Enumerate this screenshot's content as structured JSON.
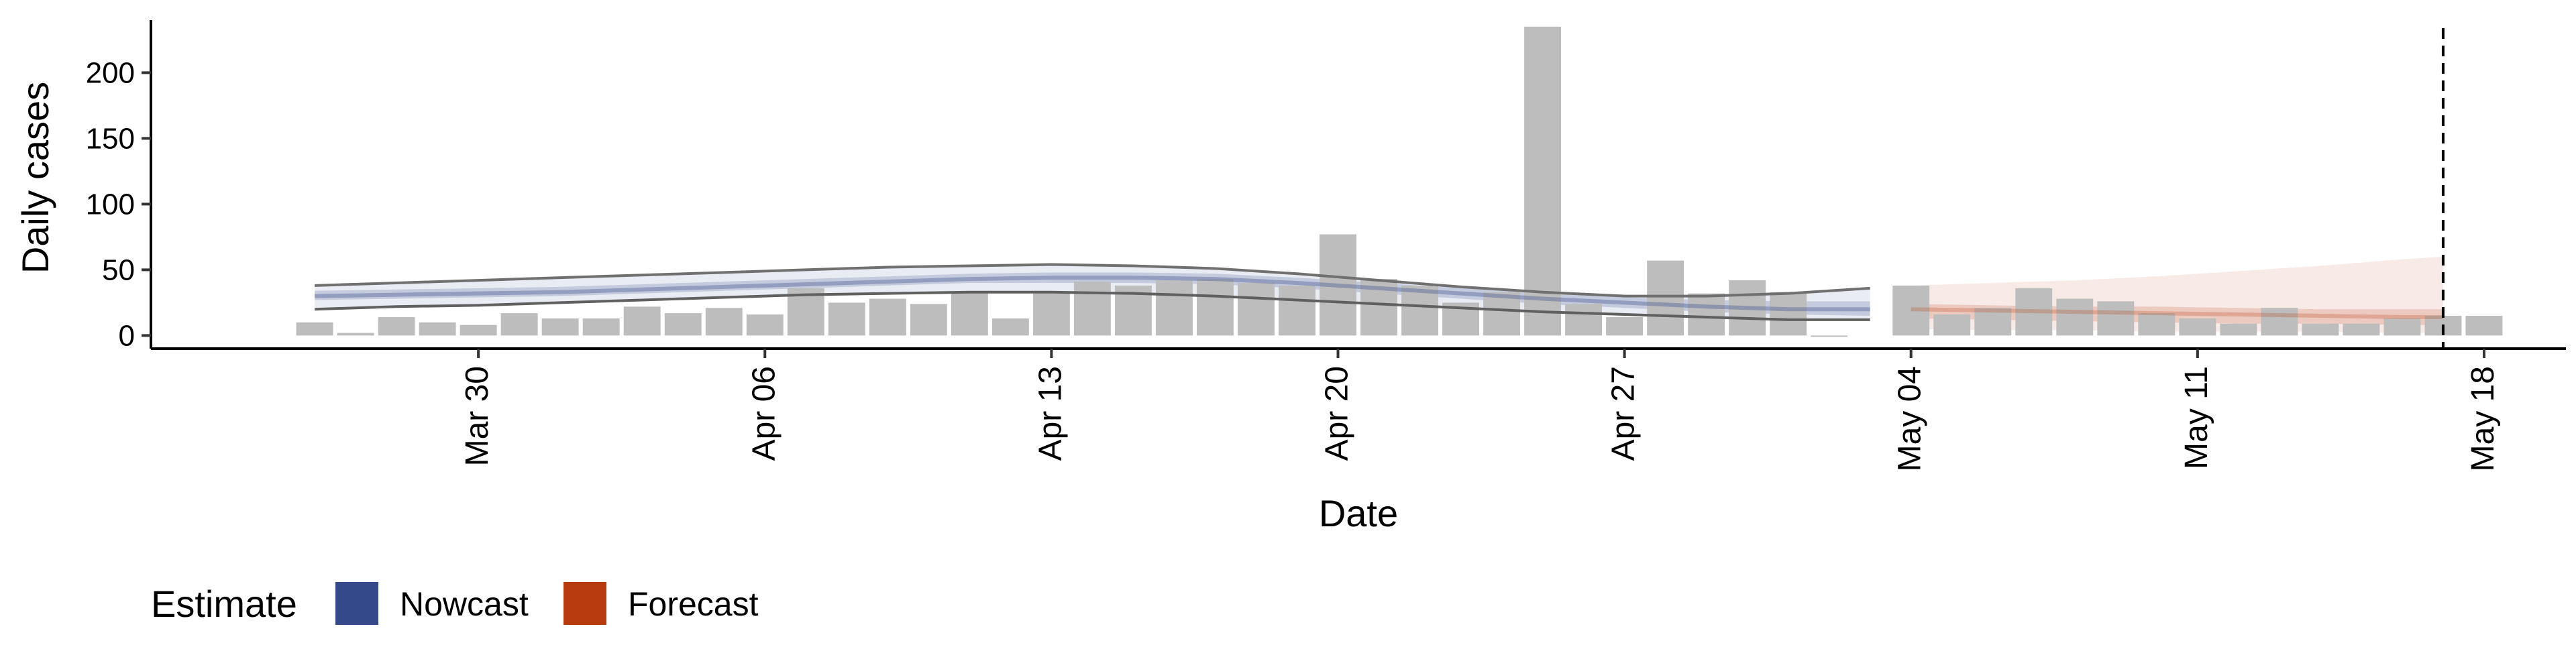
{
  "chart_data": {
    "type": "bar",
    "title": "",
    "xlabel": "Date",
    "ylabel": "Daily cases",
    "ylim": [
      -10,
      240
    ],
    "yticks": [
      0,
      50,
      100,
      150,
      200
    ],
    "x_range": [
      "2020-03-22",
      "2020-05-20"
    ],
    "xticks": [
      {
        "date": "2020-03-30",
        "label": "Mar 30"
      },
      {
        "date": "2020-04-06",
        "label": "Apr 06"
      },
      {
        "date": "2020-04-13",
        "label": "Apr 13"
      },
      {
        "date": "2020-04-20",
        "label": "Apr 20"
      },
      {
        "date": "2020-04-27",
        "label": "Apr 27"
      },
      {
        "date": "2020-05-04",
        "label": "May 04"
      },
      {
        "date": "2020-05-11",
        "label": "May 11"
      },
      {
        "date": "2020-05-18",
        "label": "May 18"
      }
    ],
    "grid": false,
    "legend": {
      "position": "bottom-left",
      "title": "Estimate",
      "entries": [
        {
          "label": "Nowcast",
          "color": "#34498a"
        },
        {
          "label": "Forecast",
          "color": "#b83a0f"
        }
      ]
    },
    "reference_line": {
      "date": "2020-05-17",
      "style": "dashed"
    },
    "observed_cases": {
      "color": "#bdbdbd",
      "dates": [
        "2020-03-26",
        "2020-03-27",
        "2020-03-28",
        "2020-03-29",
        "2020-03-30",
        "2020-03-31",
        "2020-04-01",
        "2020-04-02",
        "2020-04-03",
        "2020-04-04",
        "2020-04-05",
        "2020-04-06",
        "2020-04-07",
        "2020-04-08",
        "2020-04-09",
        "2020-04-10",
        "2020-04-11",
        "2020-04-12",
        "2020-04-13",
        "2020-04-14",
        "2020-04-15",
        "2020-04-16",
        "2020-04-17",
        "2020-04-18",
        "2020-04-19",
        "2020-04-20",
        "2020-04-21",
        "2020-04-22",
        "2020-04-23",
        "2020-04-24",
        "2020-04-25",
        "2020-04-26",
        "2020-04-27",
        "2020-04-28",
        "2020-04-29",
        "2020-04-30",
        "2020-05-01",
        "2020-05-02",
        "2020-05-04",
        "2020-05-05",
        "2020-05-06",
        "2020-05-07",
        "2020-05-08",
        "2020-05-09",
        "2020-05-10",
        "2020-05-11",
        "2020-05-12",
        "2020-05-13",
        "2020-05-14",
        "2020-05-15",
        "2020-05-16",
        "2020-05-17",
        "2020-05-18"
      ],
      "values": [
        10,
        2,
        14,
        10,
        8,
        17,
        13,
        13,
        22,
        17,
        21,
        16,
        36,
        25,
        28,
        24,
        33,
        13,
        32,
        41,
        38,
        42,
        43,
        40,
        38,
        77,
        43,
        38,
        25,
        33,
        235,
        24,
        14,
        57,
        32,
        42,
        33,
        0,
        38,
        16,
        21,
        36,
        28,
        26,
        17,
        13,
        9,
        21,
        9,
        9,
        13,
        15,
        15
      ]
    },
    "nowcast": {
      "color": "#34498a",
      "dates": [
        "2020-03-26",
        "2020-03-28",
        "2020-03-30",
        "2020-04-01",
        "2020-04-03",
        "2020-04-05",
        "2020-04-07",
        "2020-04-09",
        "2020-04-11",
        "2020-04-13",
        "2020-04-15",
        "2020-04-17",
        "2020-04-19",
        "2020-04-21",
        "2020-04-23",
        "2020-04-25",
        "2020-04-27",
        "2020-04-29",
        "2020-05-01",
        "2020-05-03"
      ],
      "median": [
        30,
        31,
        32,
        33,
        35,
        37,
        39,
        41,
        43,
        44,
        44,
        43,
        40,
        36,
        32,
        28,
        25,
        22,
        20,
        20
      ],
      "lower_50": [
        27,
        28,
        29,
        30,
        32,
        34,
        36,
        38,
        40,
        40,
        40,
        39,
        36,
        32,
        28,
        24,
        21,
        18,
        16,
        15
      ],
      "upper_50": [
        34,
        35,
        36,
        37,
        39,
        41,
        43,
        45,
        47,
        48,
        48,
        47,
        44,
        40,
        36,
        32,
        29,
        27,
        26,
        26
      ],
      "lower_90": [
        20,
        22,
        23,
        25,
        27,
        29,
        31,
        32,
        33,
        33,
        32,
        30,
        27,
        24,
        21,
        18,
        16,
        14,
        12,
        12
      ],
      "upper_90": [
        38,
        40,
        42,
        44,
        46,
        48,
        50,
        52,
        53,
        54,
        53,
        51,
        47,
        42,
        37,
        33,
        30,
        30,
        32,
        36
      ]
    },
    "forecast": {
      "color": "#b83a0f",
      "dates": [
        "2020-05-04",
        "2020-05-06",
        "2020-05-08",
        "2020-05-10",
        "2020-05-12",
        "2020-05-14",
        "2020-05-16",
        "2020-05-17"
      ],
      "median": [
        20,
        19,
        18,
        17,
        16,
        15,
        14,
        14
      ],
      "lower_50": [
        13,
        12,
        11,
        10,
        9,
        9,
        8,
        8
      ],
      "upper_50": [
        24,
        23,
        22,
        22,
        21,
        20,
        20,
        20
      ],
      "lower_90": [
        5,
        4,
        4,
        3,
        3,
        3,
        2,
        2
      ],
      "upper_90": [
        38,
        40,
        42,
        45,
        49,
        53,
        58,
        60
      ]
    }
  }
}
